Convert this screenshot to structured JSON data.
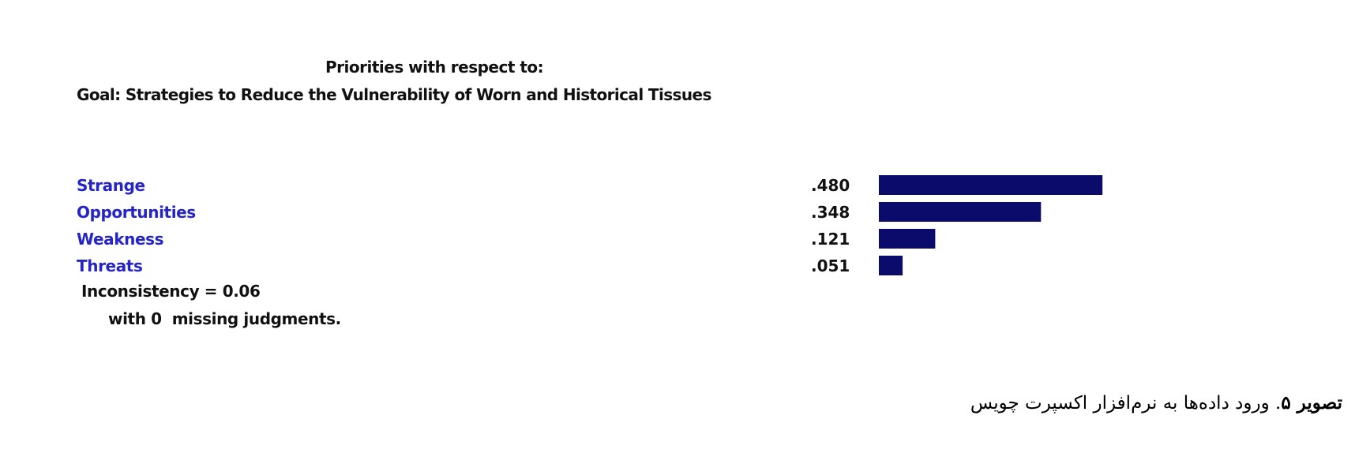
{
  "header": {
    "line1": "Priorities with respect to:",
    "line2": "Goal: Strategies to Reduce the Vulnerability of Worn and Historical Tissues"
  },
  "chart_data": {
    "type": "bar",
    "orientation": "horizontal",
    "categories": [
      "Strange",
      "Opportunities",
      "Weakness",
      "Threats"
    ],
    "values": [
      0.48,
      0.348,
      0.121,
      0.051
    ],
    "value_labels": [
      ".480",
      ".348",
      ".121",
      ".051"
    ],
    "bar_color": "#0b0b6b",
    "label_color": "#2424c8"
  },
  "footer": {
    "inconsistency": "Inconsistency = 0.06",
    "missing": "with 0  missing judgments."
  },
  "caption": {
    "bold": "تصویر ۵",
    "text": ". ورود داده‌ها به نرم‌افزار اکسپرت چویس"
  }
}
